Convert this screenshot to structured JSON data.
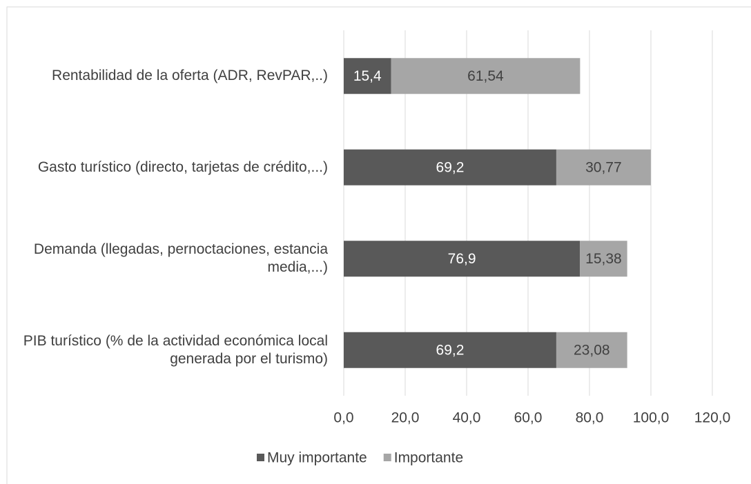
{
  "chart_data": {
    "type": "stacked-bar-horizontal",
    "categories": [
      "Rentabilidad de la oferta (ADR, RevPAR,..)",
      "Gasto turístico (directo, tarjetas de crédito,...)",
      "Demanda (llegadas, pernoctaciones, estancia media,...)",
      "PIB turístico (% de la actividad económica local generada por el turismo)"
    ],
    "series": [
      {
        "name": "Muy importante",
        "color": "#595959",
        "values": [
          15.4,
          69.2,
          76.9,
          69.2
        ],
        "value_labels": [
          "15,4",
          "69,2",
          "76,9",
          "69,2"
        ]
      },
      {
        "name": "Importante",
        "color": "#a6a6a6",
        "values": [
          61.54,
          30.77,
          15.38,
          23.08
        ],
        "value_labels": [
          "61,54",
          "30,77",
          "15,38",
          "23,08"
        ]
      }
    ],
    "xlim": [
      0,
      120
    ],
    "xticks": [
      {
        "value": 0,
        "label": "0,0"
      },
      {
        "value": 20,
        "label": "20,0"
      },
      {
        "value": 40,
        "label": "40,0"
      },
      {
        "value": 60,
        "label": "60,0"
      },
      {
        "value": 80,
        "label": "80,0"
      },
      {
        "value": 100,
        "label": "100,0"
      },
      {
        "value": 120,
        "label": "120,0"
      }
    ],
    "grid": true,
    "legend": "bottom"
  }
}
